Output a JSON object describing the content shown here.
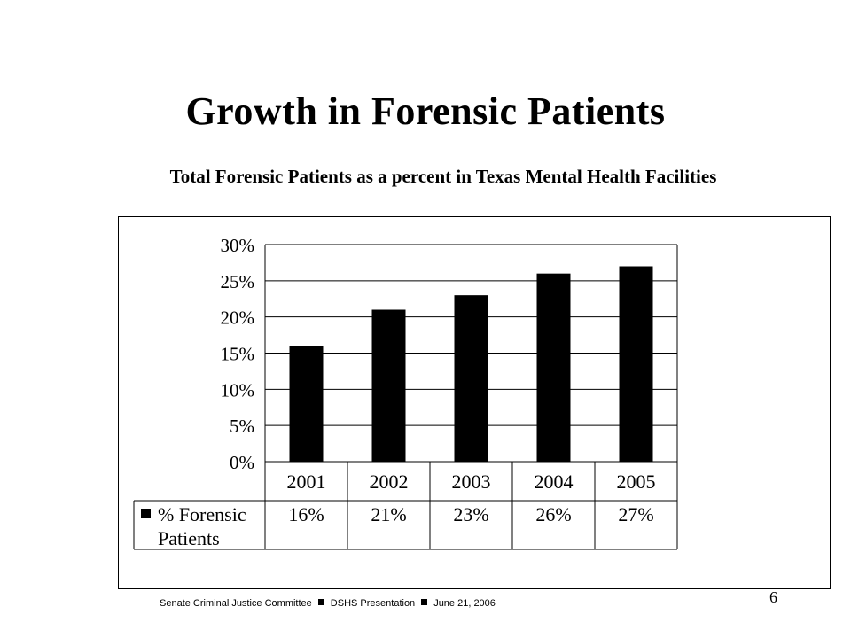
{
  "slide": {
    "title": "Growth in Forensic Patients",
    "subtitle": "Total Forensic Patients as a percent in Texas Mental Health Facilities",
    "footer": {
      "parts": [
        "Senate Criminal Justice Committee",
        "DSHS Presentation",
        "June 21, 2006"
      ]
    },
    "page_number": "6"
  },
  "chart_data": {
    "type": "bar",
    "categories": [
      "2001",
      "2002",
      "2003",
      "2004",
      "2005"
    ],
    "series": [
      {
        "name": "% Forensic Patients",
        "name_lines": [
          "% Forensic",
          "Patients"
        ],
        "values": [
          16,
          21,
          23,
          26,
          27
        ],
        "labels": [
          "16%",
          "21%",
          "23%",
          "26%",
          "27%"
        ],
        "color": "#000000"
      }
    ],
    "ylim": [
      0,
      30
    ],
    "yticks": [
      0,
      5,
      10,
      15,
      20,
      25,
      30
    ],
    "ytick_labels": [
      "0%",
      "5%",
      "10%",
      "15%",
      "20%",
      "25%",
      "30%"
    ],
    "grid": true,
    "legend": "data-table"
  }
}
